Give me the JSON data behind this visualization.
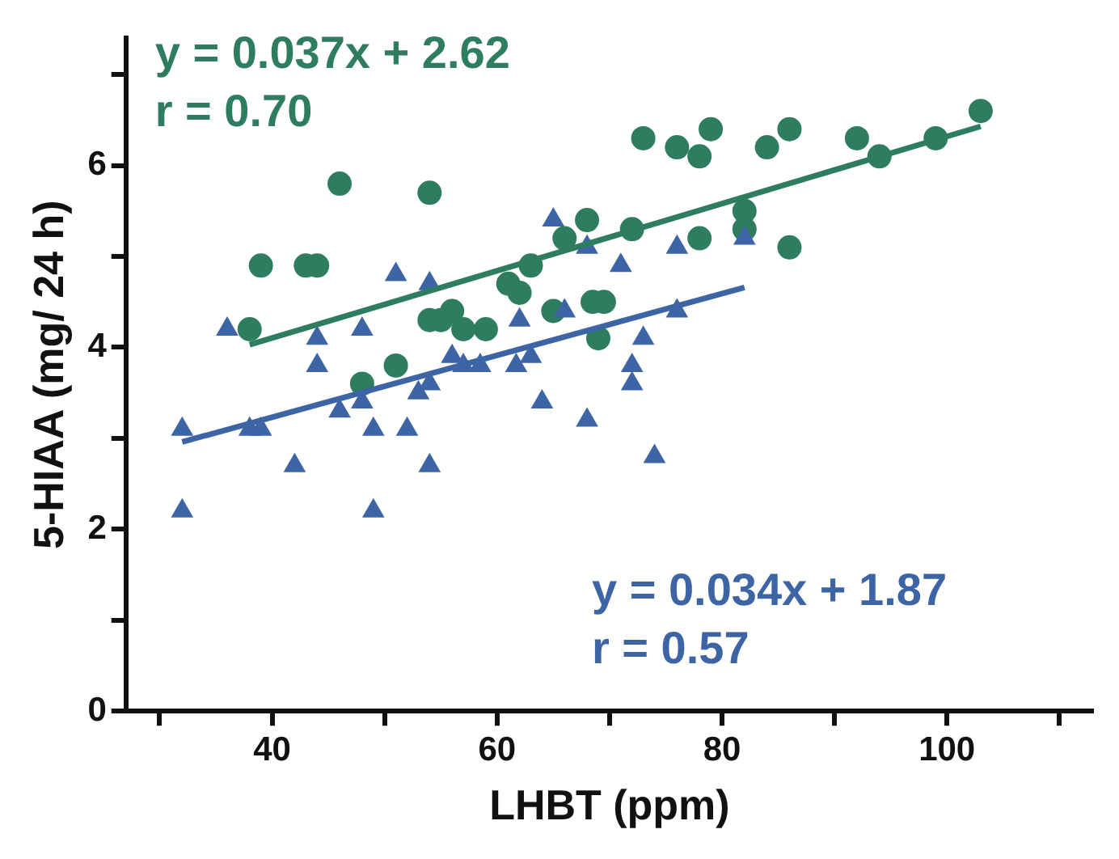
{
  "chart_data": {
    "type": "scatter",
    "xlabel": "LHBT (ppm)",
    "ylabel": "5-HIAA (mg/ 24 h)",
    "xlim": [
      27,
      113
    ],
    "xticks": [
      {
        "value": 30,
        "label": null
      },
      40,
      {
        "value": 50,
        "label": null
      },
      60,
      {
        "value": 70,
        "label": null
      },
      80,
      {
        "value": 90,
        "label": null
      },
      100,
      {
        "value": 110,
        "label": null
      }
    ],
    "ylim": [
      0,
      7.4
    ],
    "yticks": [
      0,
      {
        "value": 1,
        "label": null
      },
      2,
      {
        "value": 3,
        "label": null
      },
      4,
      {
        "value": 5,
        "label": null
      },
      6,
      {
        "value": 7,
        "label": null
      }
    ],
    "grid": false,
    "legend": false,
    "series": [
      {
        "type": "scatter",
        "marker": "circle",
        "color": "#2e7d5e",
        "x": [
          46,
          54,
          39,
          43,
          44,
          38,
          68,
          72,
          66,
          63,
          61,
          62,
          56,
          54,
          55,
          57,
          59,
          65,
          68.5,
          69.5,
          69,
          51,
          48,
          73,
          76,
          78,
          79,
          84,
          86,
          92,
          94,
          99,
          103,
          78,
          82,
          82,
          86
        ],
        "values": [
          5.8,
          5.7,
          4.9,
          4.9,
          4.9,
          4.2,
          5.4,
          5.3,
          5.2,
          4.9,
          4.7,
          4.6,
          4.4,
          4.3,
          4.3,
          4.2,
          4.2,
          4.4,
          4.5,
          4.5,
          4.1,
          3.8,
          3.6,
          6.3,
          6.2,
          6.1,
          6.4,
          6.2,
          6.4,
          6.3,
          6.1,
          6.3,
          6.6,
          5.2,
          5.5,
          5.3,
          5.1
        ]
      },
      {
        "type": "scatter",
        "marker": "triangle",
        "color": "#3d65a6",
        "x": [
          32,
          32,
          36,
          38,
          39,
          42,
          44,
          44,
          46,
          48,
          48,
          49,
          49,
          51,
          52,
          53,
          54,
          54,
          54,
          56,
          57,
          58.5,
          61.7,
          62,
          63,
          64,
          65,
          66,
          68,
          68,
          71,
          72,
          72,
          73,
          74,
          76,
          76,
          82
        ],
        "values": [
          3.1,
          2.2,
          4.2,
          3.1,
          3.1,
          2.7,
          4.1,
          3.8,
          3.3,
          4.2,
          3.4,
          3.1,
          2.2,
          4.8,
          3.1,
          3.5,
          2.7,
          4.7,
          3.6,
          3.9,
          3.8,
          3.8,
          3.8,
          4.3,
          3.9,
          3.4,
          5.4,
          4.4,
          5.1,
          3.2,
          4.9,
          3.8,
          3.6,
          4.1,
          2.8,
          5.1,
          4.4,
          5.2
        ]
      },
      {
        "type": "line",
        "marker": "none",
        "line_style": "solid",
        "color": "#2e7d5e",
        "x": [
          38,
          103
        ],
        "values": [
          4.03,
          6.43
        ]
      },
      {
        "type": "line",
        "marker": "none",
        "line_style": "solid",
        "color": "#3d65a6",
        "x": [
          32,
          82
        ],
        "values": [
          2.96,
          4.66
        ]
      }
    ],
    "annotations": [
      "y = 0.037x + 2.62",
      "r = 0.70",
      "y = 0.034x + 1.87",
      "r = 0.57"
    ]
  }
}
